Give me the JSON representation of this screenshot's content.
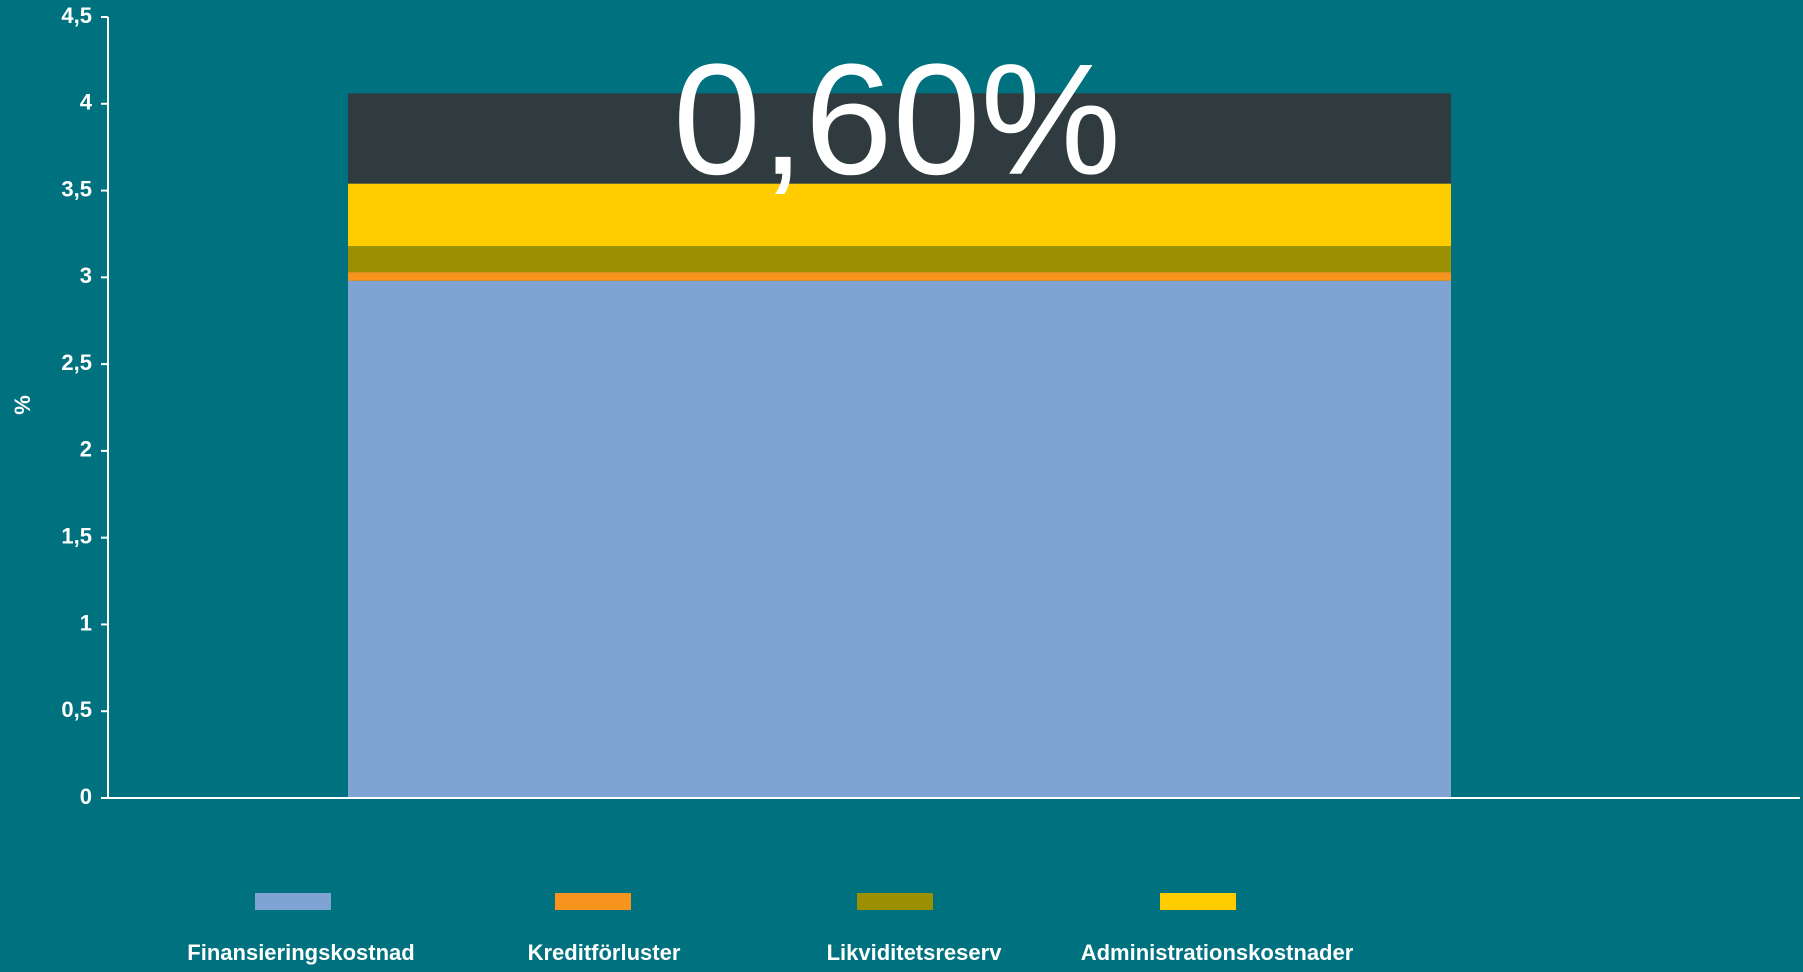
{
  "chart_data": {
    "type": "stacked-bar",
    "annotation": "0,60%",
    "y_label": "%",
    "categories": [
      null
    ],
    "series": [
      {
        "name": "Finansieringskostnad",
        "color": "#7fa3d3",
        "values": [
          2.98
        ]
      },
      {
        "name": "Kreditförluster",
        "color": "#f7941d",
        "values": [
          0.05
        ]
      },
      {
        "name": "Likviditetsreserv",
        "color": "#9b9000",
        "values": [
          0.15
        ]
      },
      {
        "name": "Administrationskostnader",
        "color": "#ffcc00",
        "values": [
          0.36
        ]
      },
      {
        "color": "#2f3b3e",
        "values": [
          0.52
        ]
      }
    ],
    "ylim": [
      0,
      4.5
    ],
    "yticks": [
      0,
      {
        "value": 0.5,
        "label": "0,5"
      },
      1,
      {
        "value": 1.5,
        "label": "1,5"
      },
      2,
      {
        "value": 2.5,
        "label": "2,5"
      },
      3,
      {
        "value": 3.5,
        "label": "3,5"
      },
      4,
      {
        "value": 4.5,
        "label": "4,5"
      }
    ],
    "legend": "bottom"
  }
}
